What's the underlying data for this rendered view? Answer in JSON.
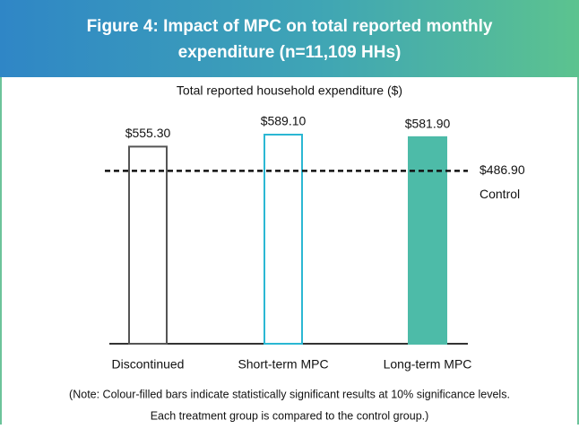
{
  "chart_data": {
    "type": "bar",
    "title": [
      "Figure 4: Impact of MPC on total reported monthly",
      "expenditure (n=11,109 HHs)"
    ],
    "subtitle": "Total reported household expenditure ($)",
    "categories": [
      "Discontinued",
      "Short-term MPC",
      "Long-term MPC"
    ],
    "values": [
      555.3,
      589.1,
      581.9
    ],
    "value_labels": [
      "$555.30",
      "$589.10",
      "$581.90"
    ],
    "colors": [
      "#555555",
      "#2bb7d3",
      "#4dbba8"
    ],
    "filled": [
      false,
      false,
      true
    ],
    "reference": {
      "name": "Control",
      "value": 486.9,
      "label": "$486.90"
    },
    "note": [
      "(Note: Colour-filled bars indicate statistically significant results at 10% significance levels.",
      "Each treatment group is compared to the control group.)"
    ]
  }
}
